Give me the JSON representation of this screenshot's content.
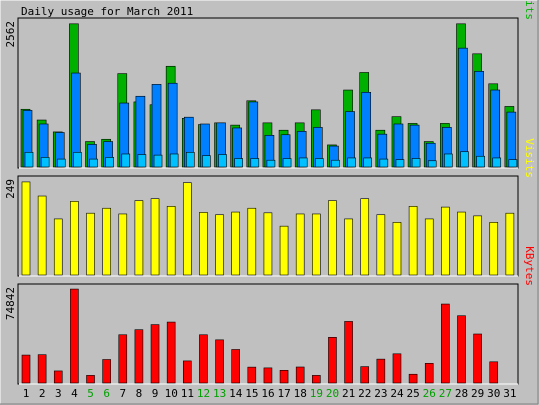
{
  "title": "Daily usage for March 2011",
  "colors": {
    "background": "#c0c0c0",
    "hits": "#00b000",
    "files": "#0080ff",
    "pages": "#00c0ff",
    "visits": "#ffff00",
    "kbytes": "#ff0000",
    "weekend": "#00a000",
    "weekday": "#000000"
  },
  "chart_data": [
    {
      "type": "bar",
      "panel": "top",
      "ylabel_value": "2562",
      "legend": [
        "Pages",
        "Files",
        "Hits"
      ],
      "ylim": [
        0,
        2562
      ],
      "categories": [
        "1",
        "2",
        "3",
        "4",
        "5",
        "6",
        "7",
        "8",
        "9",
        "10",
        "11",
        "12",
        "13",
        "14",
        "15",
        "16",
        "17",
        "18",
        "19",
        "20",
        "21",
        "22",
        "23",
        "24",
        "25",
        "26",
        "27",
        "28",
        "29",
        "30",
        "31"
      ],
      "series": [
        {
          "name": "Hits",
          "values": [
            1020,
            830,
            620,
            2530,
            450,
            490,
            1650,
            1150,
            1100,
            1780,
            860,
            750,
            780,
            740,
            1170,
            780,
            650,
            780,
            1010,
            390,
            1360,
            1670,
            650,
            890,
            770,
            450,
            770,
            2530,
            2000,
            1470,
            1070
          ]
        },
        {
          "name": "Files",
          "values": [
            1000,
            760,
            610,
            1660,
            400,
            450,
            1130,
            1250,
            1460,
            1480,
            880,
            760,
            780,
            690,
            1150,
            560,
            570,
            630,
            700,
            370,
            980,
            1320,
            580,
            760,
            740,
            420,
            700,
            2100,
            1690,
            1360,
            970
          ]
        },
        {
          "name": "Pages",
          "values": [
            260,
            170,
            140,
            260,
            140,
            170,
            230,
            220,
            210,
            230,
            260,
            200,
            220,
            150,
            150,
            120,
            150,
            160,
            150,
            120,
            160,
            160,
            140,
            130,
            150,
            110,
            230,
            270,
            190,
            160,
            130
          ]
        }
      ]
    },
    {
      "type": "bar",
      "panel": "middle",
      "ylabel_value": "249",
      "legend": [
        "Visits"
      ],
      "ylim": [
        0,
        249
      ],
      "categories": [
        "1",
        "2",
        "3",
        "4",
        "5",
        "6",
        "7",
        "8",
        "9",
        "10",
        "11",
        "12",
        "13",
        "14",
        "15",
        "16",
        "17",
        "18",
        "19",
        "20",
        "21",
        "22",
        "23",
        "24",
        "25",
        "26",
        "27",
        "28",
        "29",
        "30",
        "31"
      ],
      "series": [
        {
          "name": "Visits",
          "values": [
            244,
            207,
            147,
            193,
            162,
            175,
            160,
            195,
            200,
            180,
            242,
            164,
            158,
            165,
            175,
            163,
            128,
            160,
            160,
            195,
            147,
            200,
            158,
            138,
            180,
            147,
            178,
            165,
            155,
            138,
            162
          ]
        }
      ]
    },
    {
      "type": "bar",
      "panel": "bottom",
      "ylabel_value": "74842",
      "legend": [
        "KBytes"
      ],
      "ylim": [
        0,
        74842
      ],
      "categories": [
        "1",
        "2",
        "3",
        "4",
        "5",
        "6",
        "7",
        "8",
        "9",
        "10",
        "11",
        "12",
        "13",
        "14",
        "15",
        "16",
        "17",
        "18",
        "19",
        "20",
        "21",
        "22",
        "23",
        "24",
        "25",
        "26",
        "27",
        "28",
        "29",
        "30",
        "31"
      ],
      "series": [
        {
          "name": "KBytes",
          "values": [
            22000,
            22300,
            9500,
            74000,
            6000,
            18500,
            38000,
            42000,
            46000,
            48000,
            17400,
            38000,
            34000,
            26400,
            12500,
            11900,
            10000,
            12600,
            6000,
            36000,
            48500,
            12900,
            18800,
            23000,
            6900,
            15500,
            62200,
            53000,
            38600,
            16700,
            0
          ]
        }
      ]
    }
  ],
  "x_labels": [
    {
      "text": "1",
      "weekend": false
    },
    {
      "text": "2",
      "weekend": false
    },
    {
      "text": "3",
      "weekend": false
    },
    {
      "text": "4",
      "weekend": false
    },
    {
      "text": "5",
      "weekend": true
    },
    {
      "text": "6",
      "weekend": true
    },
    {
      "text": "7",
      "weekend": false
    },
    {
      "text": "8",
      "weekend": false
    },
    {
      "text": "9",
      "weekend": false
    },
    {
      "text": "10",
      "weekend": false
    },
    {
      "text": "11",
      "weekend": false
    },
    {
      "text": "12",
      "weekend": true
    },
    {
      "text": "13",
      "weekend": true
    },
    {
      "text": "14",
      "weekend": false
    },
    {
      "text": "15",
      "weekend": false
    },
    {
      "text": "16",
      "weekend": false
    },
    {
      "text": "17",
      "weekend": false
    },
    {
      "text": "18",
      "weekend": false
    },
    {
      "text": "19",
      "weekend": true
    },
    {
      "text": "20",
      "weekend": true
    },
    {
      "text": "21",
      "weekend": false
    },
    {
      "text": "22",
      "weekend": false
    },
    {
      "text": "23",
      "weekend": false
    },
    {
      "text": "24",
      "weekend": false
    },
    {
      "text": "25",
      "weekend": false
    },
    {
      "text": "26",
      "weekend": true
    },
    {
      "text": "27",
      "weekend": true
    },
    {
      "text": "28",
      "weekend": false
    },
    {
      "text": "29",
      "weekend": false
    },
    {
      "text": "30",
      "weekend": false
    },
    {
      "text": "31",
      "weekend": false
    }
  ]
}
